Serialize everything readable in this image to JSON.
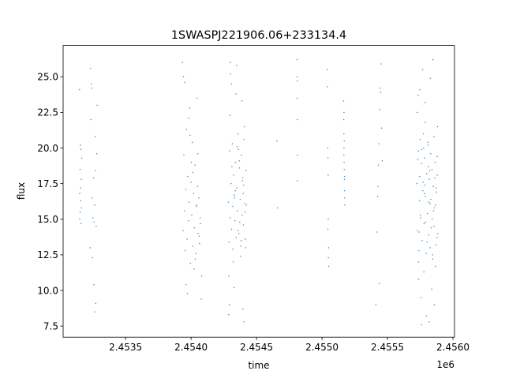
{
  "chart_data": {
    "type": "scatter",
    "title": "1SWASPJ221906.06+233134.4",
    "xlabel": "time",
    "ylabel": "flux",
    "x_offset_label": "1e6",
    "xlim": [
      2453023,
      2456012
    ],
    "ylim": [
      6.72,
      27.2
    ],
    "x_ticks": [
      2453500,
      2454000,
      2454500,
      2455000,
      2455500,
      2456000
    ],
    "x_tick_labels": [
      "2.4535",
      "2.4540",
      "2.4545",
      "2.4550",
      "2.4555",
      "2.4560"
    ],
    "y_ticks": [
      7.5,
      10.0,
      12.5,
      15.0,
      17.5,
      20.0,
      22.5,
      25.0
    ],
    "y_tick_labels": [
      "7.5",
      "10.0",
      "12.5",
      "15.0",
      "17.5",
      "20.0",
      "22.5",
      "25.0"
    ],
    "grid": false,
    "marker_color": "#1f77b4",
    "series": [
      {
        "time": [
          2453150,
          2453152,
          2453155,
          2453158,
          2453160,
          2453162,
          2453165,
          2453148,
          2453150,
          2453153,
          2453156,
          2453160,
          2453163,
          2453230,
          2453235,
          2453240,
          2453245,
          2453250,
          2453255,
          2453260,
          2453265,
          2453270,
          2453275,
          2453280,
          2453238,
          2453248,
          2453258,
          2453268,
          2453262,
          2453272,
          2453232,
          2453283,
          2453935,
          2453940,
          2453945,
          2453950,
          2453955,
          2453960,
          2453965,
          2453970,
          2453975,
          2453980,
          2453985,
          2453990,
          2453995,
          2454000,
          2454005,
          2454010,
          2454015,
          2454020,
          2454025,
          2454030,
          2454035,
          2454040,
          2454045,
          2454050,
          2454055,
          2454060,
          2454065,
          2454070,
          2453942,
          2453962,
          2453982,
          2454002,
          2454022,
          2454042,
          2454062,
          2453952,
          2453972,
          2453992,
          2454012,
          2454032,
          2454052,
          2454072,
          2454078,
          2454080,
          2454285,
          2454290,
          2454295,
          2454300,
          2454305,
          2454310,
          2454315,
          2454320,
          2454325,
          2454330,
          2454335,
          2454340,
          2454345,
          2454350,
          2454355,
          2454360,
          2454365,
          2454370,
          2454375,
          2454380,
          2454385,
          2454390,
          2454395,
          2454400,
          2454405,
          2454410,
          2454415,
          2454420,
          2454288,
          2454298,
          2454308,
          2454318,
          2454328,
          2454338,
          2454348,
          2454358,
          2454368,
          2454378,
          2454388,
          2454398,
          2454408,
          2454418,
          2454292,
          2454312,
          2454332,
          2454352,
          2454372,
          2454392,
          2454412,
          2454302,
          2454322,
          2454342,
          2454362,
          2454382,
          2454402,
          2454422,
          2454287,
          2454396,
          2454405,
          2454300,
          2454655,
          2454660,
          2454810,
          2454810,
          2454811,
          2454812,
          2454812,
          2454813,
          2454813,
          2455040,
          2455042,
          2455044,
          2455046,
          2455048,
          2455050,
          2455052,
          2455045,
          2455047,
          2455049,
          2455165,
          2455166,
          2455167,
          2455168,
          2455169,
          2455170,
          2455171,
          2455172,
          2455173,
          2455174,
          2455168,
          2455170,
          2455172,
          2455167,
          2455420,
          2455425,
          2455430,
          2455435,
          2455440,
          2455445,
          2455450,
          2455455,
          2455460,
          2455428,
          2455448,
          2455438,
          2455412,
          2455725,
          2455730,
          2455735,
          2455740,
          2455745,
          2455750,
          2455755,
          2455760,
          2455765,
          2455770,
          2455775,
          2455780,
          2455785,
          2455790,
          2455795,
          2455800,
          2455805,
          2455810,
          2455815,
          2455820,
          2455825,
          2455830,
          2455835,
          2455840,
          2455845,
          2455850,
          2455855,
          2455860,
          2455865,
          2455870,
          2455875,
          2455880,
          2455885,
          2455728,
          2455738,
          2455748,
          2455758,
          2455768,
          2455778,
          2455788,
          2455798,
          2455808,
          2455818,
          2455828,
          2455838,
          2455848,
          2455858,
          2455868,
          2455878,
          2455732,
          2455752,
          2455772,
          2455792,
          2455812,
          2455832,
          2455852,
          2455872,
          2455742,
          2455762,
          2455782,
          2455802,
          2455822,
          2455842,
          2455862,
          2455882,
          2455736,
          2455776,
          2455816,
          2455856,
          2455746,
          2455786,
          2455826,
          2455866,
          2455735,
          2455790,
          2455845,
          2455880,
          2455760
        ],
        "flux": [
          15.0,
          18.5,
          20.2,
          16.3,
          14.7,
          17.8,
          19.3,
          24.1,
          16.8,
          15.5,
          17.2,
          19.9,
          15.8,
          13.0,
          22.0,
          24.2,
          16.5,
          15.1,
          17.9,
          14.8,
          16.0,
          18.4,
          14.5,
          19.6,
          24.5,
          12.3,
          10.4,
          20.8,
          8.5,
          9.1,
          25.6,
          23.0,
          26.0,
          14.2,
          19.5,
          15.6,
          12.8,
          17.1,
          21.3,
          13.6,
          18.0,
          14.9,
          16.2,
          22.8,
          11.9,
          17.6,
          15.3,
          20.4,
          13.1,
          16.8,
          14.4,
          18.8,
          12.6,
          15.9,
          23.5,
          17.3,
          14.0,
          16.5,
          13.3,
          15.1,
          25.0,
          10.4,
          22.1,
          19.0,
          11.5,
          16.0,
          13.8,
          24.6,
          9.8,
          20.9,
          18.3,
          12.2,
          19.6,
          14.7,
          9.4,
          11.0,
          16.2,
          13.4,
          19.8,
          15.1,
          17.5,
          14.3,
          20.3,
          12.9,
          18.1,
          16.7,
          14.9,
          19.0,
          13.7,
          17.2,
          15.6,
          21.0,
          14.0,
          18.6,
          16.4,
          13.1,
          19.5,
          15.3,
          17.9,
          14.6,
          20.6,
          16.1,
          13.6,
          18.4,
          11.0,
          22.3,
          24.5,
          15.9,
          10.2,
          17.0,
          25.8,
          14.2,
          19.1,
          12.4,
          23.3,
          16.8,
          21.5,
          13.0,
          9.0,
          18.7,
          16.5,
          20.1,
          14.8,
          17.7,
          15.5,
          25.2,
          12.0,
          23.8,
          19.9,
          13.5,
          17.4,
          16.0,
          8.3,
          8.7,
          7.8,
          26.0,
          20.5,
          15.8,
          26.2,
          25.0,
          23.5,
          22.0,
          24.7,
          17.7,
          19.5,
          25.5,
          24.3,
          20.0,
          19.3,
          15.0,
          13.0,
          11.7,
          14.3,
          18.1,
          12.3,
          23.3,
          22.0,
          21.0,
          20.0,
          19.0,
          18.5,
          17.8,
          17.0,
          16.5,
          16.0,
          22.5,
          20.5,
          18.0,
          19.5,
          14.1,
          16.6,
          18.8,
          20.3,
          22.7,
          24.2,
          25.9,
          21.4,
          19.1,
          17.3,
          23.9,
          10.5,
          9.0,
          17.5,
          14.2,
          19.8,
          12.8,
          16.3,
          20.6,
          15.1,
          18.9,
          13.5,
          17.0,
          21.0,
          14.7,
          19.3,
          16.6,
          12.6,
          18.2,
          15.4,
          20.2,
          13.9,
          17.8,
          16.1,
          19.6,
          14.4,
          18.5,
          12.2,
          17.3,
          20.8,
          15.8,
          19.0,
          13.2,
          16.9,
          18.1,
          14.0,
          22.5,
          10.8,
          24.1,
          9.5,
          25.5,
          11.3,
          23.2,
          8.2,
          20.4,
          7.8,
          24.9,
          10.1,
          26.2,
          9.0,
          16.0,
          13.7,
          19.2,
          15.3,
          17.6,
          14.8,
          18.7,
          16.4,
          15.6,
          17.2,
          14.1,
          19.9,
          16.8,
          13.4,
          18.4,
          15.0,
          17.9,
          21.5,
          12.0,
          20.0,
          16.2,
          14.5,
          18.0,
          17.4,
          13.0,
          11.7,
          23.7,
          21.8,
          12.5,
          19.4,
          7.6,
          8.6
        ]
      }
    ]
  }
}
